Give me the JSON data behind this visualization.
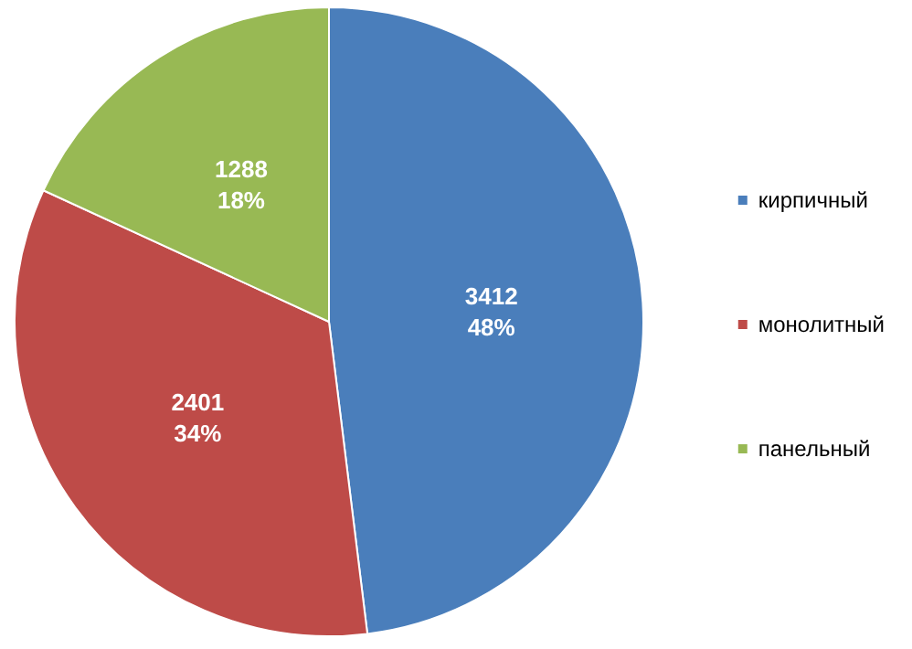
{
  "chart_data": {
    "type": "pie",
    "categories": [
      "кирпичный",
      "монолитный",
      "панельный"
    ],
    "values": [
      3412,
      2401,
      1288
    ],
    "colors": [
      "#4a7ebb",
      "#be4b48",
      "#98b954"
    ],
    "value_labels": [
      "3412\n48%",
      "2401\n34%",
      "1288\n18%"
    ],
    "legend": "right"
  }
}
